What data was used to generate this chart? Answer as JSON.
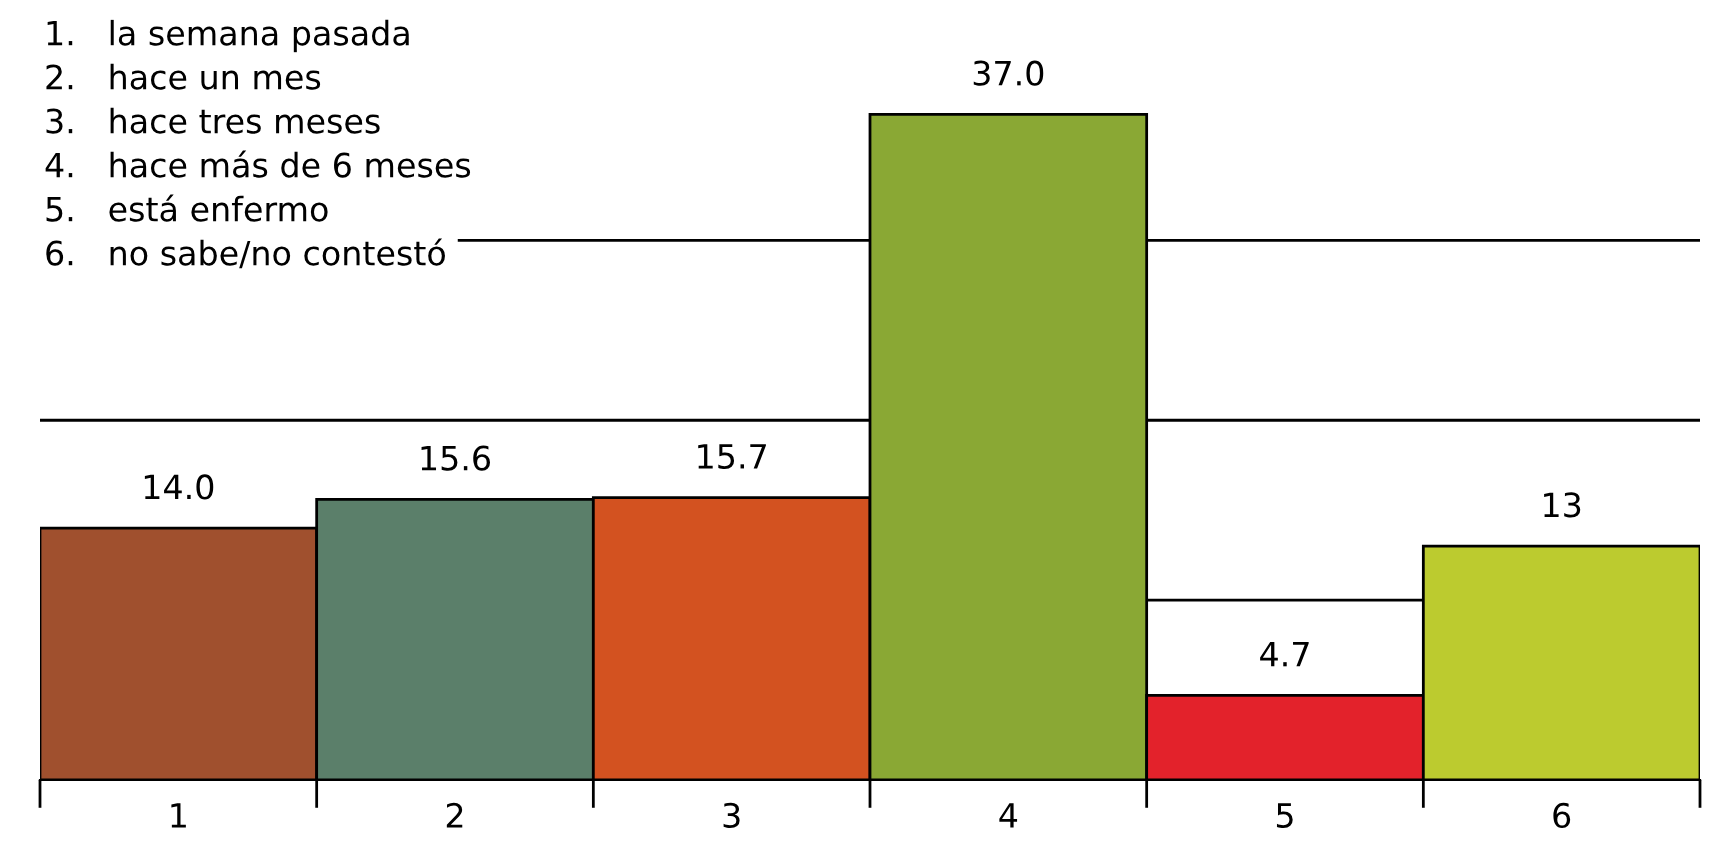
{
  "chart_data": {
    "type": "bar",
    "categories": [
      "1",
      "2",
      "3",
      "4",
      "5",
      "6"
    ],
    "values": [
      14.0,
      15.6,
      15.7,
      37.0,
      4.7,
      13
    ],
    "colors": [
      "#a0502e",
      "#5b7f6a",
      "#d35220",
      "#8aa834",
      "#e3222b",
      "#bccb2f"
    ],
    "value_labels": [
      "14.0",
      "15.6",
      "15.7",
      "37.0",
      "4.7",
      "13"
    ],
    "yticks": [
      {
        "value": 10,
        "label": null
      },
      {
        "value": 20,
        "label": null
      },
      {
        "value": 30,
        "label": null
      }
    ],
    "grid": "y",
    "tick_labels": "x",
    "annotations": [
      "1.   la semana pasada",
      "2.   hace un mes",
      "3.   hace tres meses",
      "4.   hace más de 6 meses",
      "5.   está enfermo",
      "6.   no sabe/no contestó"
    ]
  }
}
